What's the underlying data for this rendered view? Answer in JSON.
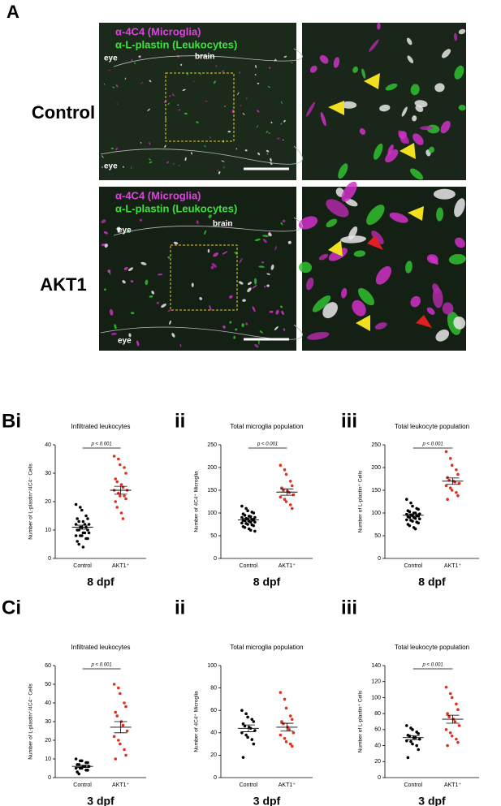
{
  "panel_a": {
    "label": "A",
    "rows": [
      {
        "label": "Control",
        "legend": [
          "α-4C4 (Microglia)",
          "α-L-plastin (Leukocytes)"
        ],
        "annotations": [
          "eye",
          "brain",
          "eye"
        ]
      },
      {
        "label": "AKT1",
        "legend": [
          "α-4C4 (Microglia)",
          "α-L-plastin (Leukocytes)"
        ],
        "annotations": [
          "eye",
          "brain",
          "eye"
        ]
      }
    ]
  },
  "chart_data": [
    {
      "type": "dot",
      "panel_label": "Bi",
      "title": "Infiltrated leukocytes",
      "y_label": "Number of L-plastin⁺/4C4⁻ Cells",
      "x_label": "8 dpf",
      "annotation": "p < 0.001",
      "categories": [
        "Control",
        "AKT1⁺"
      ],
      "colors": [
        "#000000",
        "#e0301e"
      ],
      "values": [
        [
          19,
          18,
          17,
          15,
          14,
          14,
          13,
          13,
          12,
          12,
          12,
          11,
          11,
          11,
          10,
          10,
          10,
          9,
          9,
          9,
          8,
          8,
          8,
          7,
          7,
          6,
          5,
          4
        ],
        [
          36,
          35,
          33,
          32,
          30,
          28,
          27,
          26,
          25,
          24,
          24,
          23,
          22,
          22,
          21,
          20,
          18,
          16,
          14
        ]
      ],
      "mean": [
        11,
        24
      ],
      "sem": [
        0.7,
        1.4
      ],
      "ylim": [
        0,
        40
      ],
      "yticks": [
        0,
        10,
        20,
        30,
        40
      ]
    },
    {
      "type": "dot",
      "panel_label": "ii",
      "title": "Total microglia population",
      "y_label": "Number of 4C4⁺ Microglia",
      "x_label": "8 dpf",
      "annotation": "p < 0.001",
      "categories": [
        "Control",
        "AKT1⁺"
      ],
      "colors": [
        "#000000",
        "#e0301e"
      ],
      "values": [
        [
          115,
          110,
          105,
          102,
          100,
          98,
          95,
          93,
          92,
          90,
          90,
          88,
          87,
          86,
          85,
          84,
          83,
          82,
          80,
          80,
          78,
          77,
          75,
          74,
          72,
          70,
          68,
          65,
          62,
          60
        ],
        [
          205,
          195,
          185,
          170,
          160,
          155,
          150,
          148,
          145,
          140,
          135,
          130,
          125,
          118,
          110
        ]
      ],
      "mean": [
        85,
        146
      ],
      "sem": [
        3,
        7
      ],
      "ylim": [
        0,
        250
      ],
      "yticks": [
        0,
        50,
        100,
        150,
        200,
        250
      ]
    },
    {
      "type": "dot",
      "panel_label": "iii",
      "title": "Total leukocyte population",
      "y_label": "Number of L-plastin⁺ Cells",
      "x_label": "8 dpf",
      "annotation": "p < 0.001",
      "categories": [
        "Control",
        "AKT1⁺"
      ],
      "colors": [
        "#000000",
        "#e0301e"
      ],
      "values": [
        [
          130,
          122,
          115,
          110,
          108,
          105,
          103,
          100,
          100,
          98,
          97,
          96,
          95,
          94,
          93,
          92,
          90,
          90,
          88,
          87,
          85,
          84,
          82,
          80,
          78,
          75,
          72,
          68,
          65
        ],
        [
          235,
          220,
          205,
          195,
          185,
          178,
          172,
          170,
          168,
          165,
          160,
          155,
          150,
          145,
          138,
          130
        ]
      ],
      "mean": [
        95,
        170
      ],
      "sem": [
        3,
        7
      ],
      "ylim": [
        0,
        250
      ],
      "yticks": [
        0,
        50,
        100,
        150,
        200,
        250
      ]
    },
    {
      "type": "dot",
      "panel_label": "Ci",
      "title": "Infiltrated leukocytes",
      "y_label": "Number of L-plastin⁺/4C4⁻ Cells",
      "x_label": "3 dpf",
      "annotation": "p < 0.001",
      "categories": [
        "Control",
        "AKT1⁺"
      ],
      "colors": [
        "#000000",
        "#e0301e"
      ],
      "values": [
        [
          10,
          9,
          9,
          8,
          8,
          7,
          7,
          6,
          6,
          6,
          5,
          5,
          5,
          4,
          4,
          3,
          2
        ],
        [
          50,
          48,
          45,
          40,
          38,
          35,
          33,
          30,
          28,
          25,
          22,
          20,
          18,
          15,
          12,
          10
        ]
      ],
      "mean": [
        6,
        27
      ],
      "sem": [
        0.6,
        3
      ],
      "ylim": [
        0,
        60
      ],
      "yticks": [
        0,
        10,
        20,
        30,
        40,
        50,
        60
      ]
    },
    {
      "type": "dot",
      "panel_label": "ii",
      "title": "Total microglia population",
      "y_label": "Number of 4C4⁺ Microglia",
      "x_label": "3 dpf",
      "categories": [
        "Control",
        "AKT1⁺"
      ],
      "colors": [
        "#000000",
        "#e0301e"
      ],
      "values": [
        [
          60,
          57,
          54,
          52,
          50,
          48,
          46,
          45,
          44,
          42,
          40,
          38,
          36,
          34,
          30,
          18
        ],
        [
          76,
          70,
          62,
          55,
          52,
          50,
          48,
          45,
          43,
          40,
          38,
          35,
          32,
          30,
          28
        ]
      ],
      "mean": [
        44,
        45
      ],
      "sem": [
        3,
        3.5
      ],
      "ylim": [
        0,
        100
      ],
      "yticks": [
        0,
        20,
        40,
        60,
        80,
        100
      ]
    },
    {
      "type": "dot",
      "panel_label": "iii",
      "title": "Total leukocyte population",
      "y_label": "Number of L-plastin⁺ Cells",
      "x_label": "3 dpf",
      "annotation": "p < 0.001",
      "categories": [
        "Control",
        "AKT1⁺"
      ],
      "colors": [
        "#000000",
        "#e0301e"
      ],
      "values": [
        [
          65,
          62,
          60,
          57,
          55,
          53,
          52,
          50,
          50,
          48,
          46,
          45,
          42,
          40,
          35,
          25
        ],
        [
          113,
          105,
          100,
          92,
          85,
          80,
          76,
          73,
          70,
          65,
          60,
          56,
          52,
          48,
          44,
          40
        ]
      ],
      "mean": [
        50,
        73
      ],
      "sem": [
        2.5,
        5
      ],
      "ylim": [
        0,
        140
      ],
      "yticks": [
        0,
        20,
        40,
        60,
        80,
        100,
        120,
        140
      ]
    }
  ]
}
